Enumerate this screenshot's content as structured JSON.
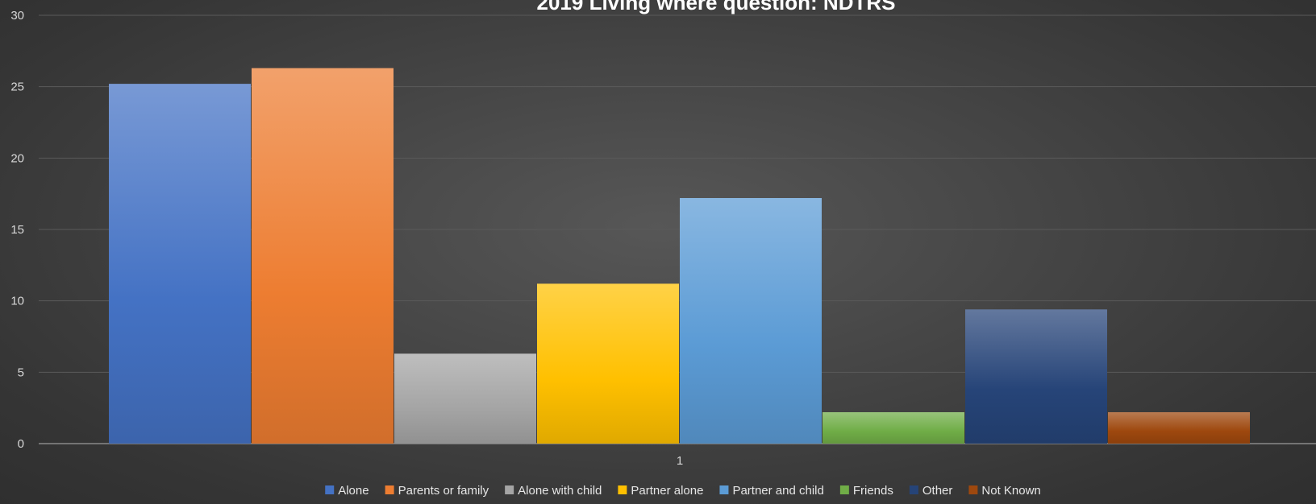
{
  "chart_data": {
    "type": "bar",
    "title": "2019 Living where question: NDTRS",
    "xlabel": "",
    "ylabel": "",
    "categories": [
      "1"
    ],
    "ylim": [
      0,
      30
    ],
    "yticks": [
      0,
      5,
      10,
      15,
      20,
      25,
      30
    ],
    "grid": true,
    "legend_position": "bottom",
    "series": [
      {
        "name": "Alone",
        "values": [
          25.2
        ],
        "color": "#4472c4"
      },
      {
        "name": "Parents or family",
        "values": [
          26.3
        ],
        "color": "#ed7d31"
      },
      {
        "name": "Alone with child",
        "values": [
          6.3
        ],
        "color": "#a5a5a5"
      },
      {
        "name": "Partner alone",
        "values": [
          11.2
        ],
        "color": "#ffc000"
      },
      {
        "name": "Partner and child",
        "values": [
          17.2
        ],
        "color": "#5b9bd5"
      },
      {
        "name": "Friends",
        "values": [
          2.2
        ],
        "color": "#70ad47"
      },
      {
        "name": "Other",
        "values": [
          9.4
        ],
        "color": "#264478"
      },
      {
        "name": "Not Known",
        "values": [
          2.2
        ],
        "color": "#9e480e"
      }
    ]
  }
}
